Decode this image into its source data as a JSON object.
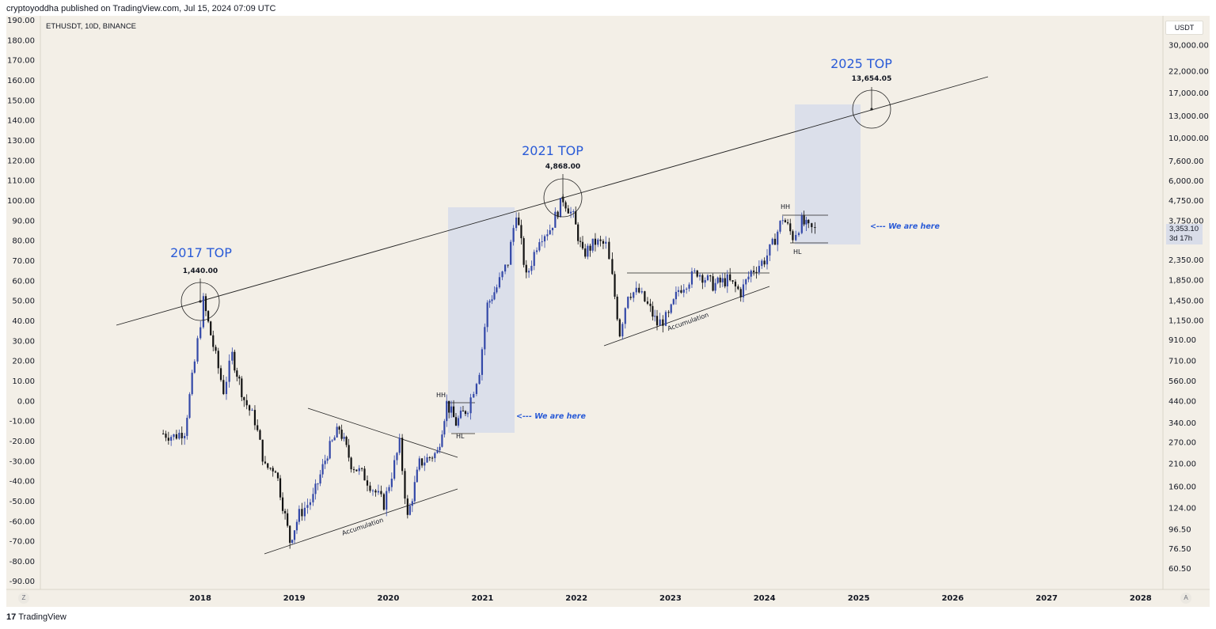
{
  "header": {
    "published_line": "cryptoyoddha published on TradingView.com, Jul 15, 2024 07:09 UTC"
  },
  "symbol_label": "ETHUSDT, 10D, BINANCE",
  "currency_badge": "USDT",
  "last_price": {
    "value": "3,353.10",
    "countdown": "3d 17h"
  },
  "corner_buttons": {
    "left": "Z",
    "right": "A"
  },
  "footer": {
    "logo": "17",
    "brand": "TradingView"
  },
  "colors": {
    "background": "#f3efe7",
    "bull": "#3348a8",
    "bear": "#111111",
    "accent": "#2a5bd7",
    "box": "#dbdfea"
  },
  "chart_data": {
    "type": "candlestick",
    "symbol": "ETHUSDT",
    "interval": "10D",
    "exchange": "BINANCE",
    "scale": "log",
    "right_axis_ticks": [
      "30,000.00",
      "22,000.00",
      "17,000.00",
      "13,000.00",
      "10,000.00",
      "7,600.00",
      "6,000.00",
      "4,750.00",
      "3,750.00",
      "2,350.00",
      "1,850.00",
      "1,450.00",
      "1,150.00",
      "910.00",
      "710.00",
      "560.00",
      "440.00",
      "340.00",
      "270.00",
      "210.00",
      "160.00",
      "124.00",
      "96.50",
      "76.50",
      "60.50"
    ],
    "left_axis_ticks": [
      "190.00",
      "180.00",
      "170.00",
      "160.00",
      "150.00",
      "140.00",
      "130.00",
      "120.00",
      "110.00",
      "100.00",
      "90.00",
      "80.00",
      "70.00",
      "60.00",
      "50.00",
      "40.00",
      "30.00",
      "20.00",
      "10.00",
      "0.00",
      "-10.00",
      "-20.00",
      "-30.00",
      "-40.00",
      "-50.00",
      "-60.00",
      "-70.00",
      "-80.00",
      "-90.00"
    ],
    "x_ticks": [
      "2018",
      "2019",
      "2020",
      "2021",
      "2022",
      "2023",
      "2024",
      "2025",
      "2026",
      "2027",
      "2028"
    ],
    "closes": [
      {
        "date": "2017-08-10",
        "price": 300
      },
      {
        "date": "2017-09-20",
        "price": 290
      },
      {
        "date": "2017-11-01",
        "price": 310
      },
      {
        "date": "2017-12-10",
        "price": 700
      },
      {
        "date": "2018-01-13",
        "price": 1440
      },
      {
        "date": "2018-02-20",
        "price": 850
      },
      {
        "date": "2018-04-01",
        "price": 500
      },
      {
        "date": "2018-05-05",
        "price": 760
      },
      {
        "date": "2018-06-20",
        "price": 450
      },
      {
        "date": "2018-08-01",
        "price": 350
      },
      {
        "date": "2018-09-10",
        "price": 200
      },
      {
        "date": "2018-10-20",
        "price": 200
      },
      {
        "date": "2018-12-15",
        "price": 84
      },
      {
        "date": "2019-01-20",
        "price": 115
      },
      {
        "date": "2019-03-15",
        "price": 140
      },
      {
        "date": "2019-05-10",
        "price": 240
      },
      {
        "date": "2019-06-25",
        "price": 320
      },
      {
        "date": "2019-08-10",
        "price": 210
      },
      {
        "date": "2019-10-01",
        "price": 180
      },
      {
        "date": "2019-12-15",
        "price": 130
      },
      {
        "date": "2020-02-14",
        "price": 265
      },
      {
        "date": "2020-03-16",
        "price": 110
      },
      {
        "date": "2020-05-01",
        "price": 210
      },
      {
        "date": "2020-07-10",
        "price": 240
      },
      {
        "date": "2020-08-15",
        "price": 430
      },
      {
        "date": "2020-09-20",
        "price": 340
      },
      {
        "date": "2020-11-05",
        "price": 410
      },
      {
        "date": "2020-12-20",
        "price": 640
      },
      {
        "date": "2021-01-20",
        "price": 1380
      },
      {
        "date": "2021-02-25",
        "price": 1700
      },
      {
        "date": "2021-04-10",
        "price": 2300
      },
      {
        "date": "2021-05-12",
        "price": 4200
      },
      {
        "date": "2021-06-20",
        "price": 1900
      },
      {
        "date": "2021-08-10",
        "price": 3100
      },
      {
        "date": "2021-09-20",
        "price": 3400
      },
      {
        "date": "2021-11-10",
        "price": 4868
      },
      {
        "date": "2021-12-20",
        "price": 3900
      },
      {
        "date": "2022-01-25",
        "price": 2500
      },
      {
        "date": "2022-03-15",
        "price": 2900
      },
      {
        "date": "2022-04-25",
        "price": 2800
      },
      {
        "date": "2022-05-20",
        "price": 1900
      },
      {
        "date": "2022-06-18",
        "price": 990
      },
      {
        "date": "2022-07-20",
        "price": 1600
      },
      {
        "date": "2022-09-01",
        "price": 1600
      },
      {
        "date": "2022-10-15",
        "price": 1300
      },
      {
        "date": "2022-11-10",
        "price": 1100
      },
      {
        "date": "2022-12-25",
        "price": 1200
      },
      {
        "date": "2023-02-01",
        "price": 1650
      },
      {
        "date": "2023-04-15",
        "price": 2050
      },
      {
        "date": "2023-06-15",
        "price": 1750
      },
      {
        "date": "2023-08-10",
        "price": 1850
      },
      {
        "date": "2023-10-01",
        "price": 1600
      },
      {
        "date": "2023-11-10",
        "price": 2050
      },
      {
        "date": "2024-01-01",
        "price": 2350
      },
      {
        "date": "2024-02-01",
        "price": 2800
      },
      {
        "date": "2024-03-12",
        "price": 3900
      },
      {
        "date": "2024-04-20",
        "price": 3100
      },
      {
        "date": "2024-05-25",
        "price": 3700
      },
      {
        "date": "2024-06-20",
        "price": 3400
      },
      {
        "date": "2024-07-15",
        "price": 3353.1
      }
    ],
    "annotations": [
      {
        "text": "2017 TOP",
        "price_label": "1,440.00"
      },
      {
        "text": "2021 TOP",
        "price_label": "4,868.00"
      },
      {
        "text": "2025 TOP",
        "price_label": "13,654.05"
      },
      {
        "text": "<--- We are here"
      },
      {
        "text": "<--- We are here"
      },
      {
        "text": "HH"
      },
      {
        "text": "HL"
      },
      {
        "text": "HH"
      },
      {
        "text": "HL"
      },
      {
        "text": "Accumulation"
      },
      {
        "text": "Accumulation"
      }
    ]
  }
}
